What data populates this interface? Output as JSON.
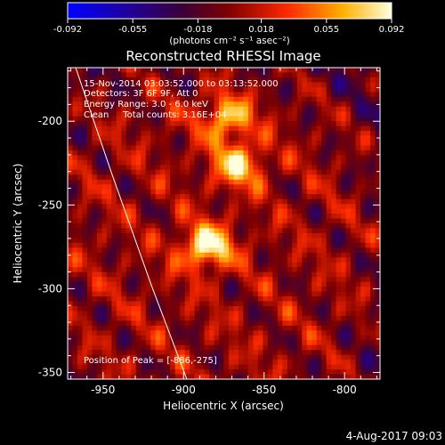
{
  "colorbar": {
    "tick_labels": [
      "-0.092",
      "-0.055",
      "-0.018",
      "0.018",
      "0.055",
      "0.092"
    ],
    "unit_label": "(photons cm⁻² s⁻¹ asec⁻²)"
  },
  "annotations": {
    "line1": "15-Nov-2014 03:03:52.000 to 03:13:52.000",
    "line2": "Detectors: 3F 6F 9F, Att 0",
    "line3": "Energy Range: 3.0 - 6.0 keV",
    "line4": "Clean     Total counts: 3.16E+04",
    "peak": "Position of Peak = [-886,-275]"
  },
  "footer": {
    "date": "4-Aug-2017 09:03"
  },
  "chart_data": {
    "type": "heatmap",
    "title": "Reconstructed RHESSI Image",
    "xlabel": "Heliocentric X (arcsec)",
    "ylabel": "Heliocentric Y (arcsec)",
    "xlim": [
      -972,
      -778
    ],
    "ylim": [
      -354,
      -168
    ],
    "x_ticks": [
      -950,
      -900,
      -850,
      -800
    ],
    "x_tick_labels": [
      "-950",
      "-900",
      "-850",
      "-800"
    ],
    "y_ticks": [
      -200,
      -250,
      -300,
      -350
    ],
    "y_tick_labels": [
      "-200",
      "-250",
      "-300",
      "-350"
    ],
    "colorbar_range": [
      -0.092,
      0.092
    ],
    "sources": [
      {
        "x": -886,
        "y": -275,
        "peak_value": 0.092
      },
      {
        "x": -873,
        "y": -198,
        "peak_value": 0.07
      },
      {
        "x": -866,
        "y": -226,
        "peak_value": 0.075
      }
    ],
    "limb_curve": [
      [
        -967,
        -168
      ],
      [
        -944,
        -233
      ],
      [
        -920,
        -298
      ],
      [
        -898,
        -354
      ]
    ],
    "colors": {
      "background": "#000000",
      "limb": "#ffffff"
    }
  }
}
